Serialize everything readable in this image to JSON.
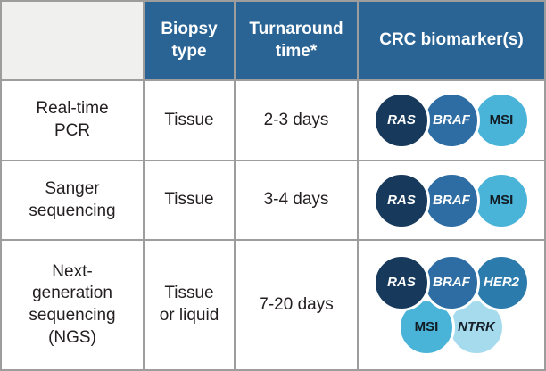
{
  "colors": {
    "header_bg": "#2a6495",
    "header_text": "#ffffff",
    "grid_border": "#9d9d9d",
    "empty_header_bg": "#f0f0ef",
    "body_text": "#231f20"
  },
  "table": {
    "header": {
      "method_col": "",
      "biopsy_type": "Biopsy\ntype",
      "turnaround_time": "Turnaround\ntime*",
      "crc_biomarkers": "CRC biomarker(s)"
    },
    "rows": [
      {
        "method": "Real-time\nPCR",
        "biopsy_type": "Tissue",
        "turnaround_time": "2-3 days",
        "biomarkers_split": 3,
        "biomarkers": [
          {
            "name": "RAS",
            "color": "#17395c",
            "text_color": "#ffffff",
            "italic": true
          },
          {
            "name": "BRAF",
            "color": "#2d6da3",
            "text_color": "#ffffff",
            "italic": true
          },
          {
            "name": "MSI",
            "color": "#49b3d8",
            "text_color": "#121c24",
            "italic": false
          }
        ]
      },
      {
        "method": "Sanger\nsequencing",
        "biopsy_type": "Tissue",
        "turnaround_time": "3-4 days",
        "biomarkers_split": 3,
        "biomarkers": [
          {
            "name": "RAS",
            "color": "#17395c",
            "text_color": "#ffffff",
            "italic": true
          },
          {
            "name": "BRAF",
            "color": "#2d6da3",
            "text_color": "#ffffff",
            "italic": true
          },
          {
            "name": "MSI",
            "color": "#49b3d8",
            "text_color": "#121c24",
            "italic": false
          }
        ]
      },
      {
        "method": "Next-\ngeneration\nsequencing\n(NGS)",
        "biopsy_type": "Tissue\nor liquid",
        "turnaround_time": "7-20 days",
        "biomarkers_split": 3,
        "biomarkers": [
          {
            "name": "RAS",
            "color": "#17395c",
            "text_color": "#ffffff",
            "italic": true
          },
          {
            "name": "BRAF",
            "color": "#2d6da3",
            "text_color": "#ffffff",
            "italic": true
          },
          {
            "name": "HER2",
            "color": "#2b7cad",
            "text_color": "#ffffff",
            "italic": true
          },
          {
            "name": "MSI",
            "color": "#49b3d8",
            "text_color": "#121c24",
            "italic": false
          },
          {
            "name": "NTRK",
            "color": "#a6daed",
            "text_color": "#15202a",
            "italic": true
          }
        ]
      }
    ]
  }
}
